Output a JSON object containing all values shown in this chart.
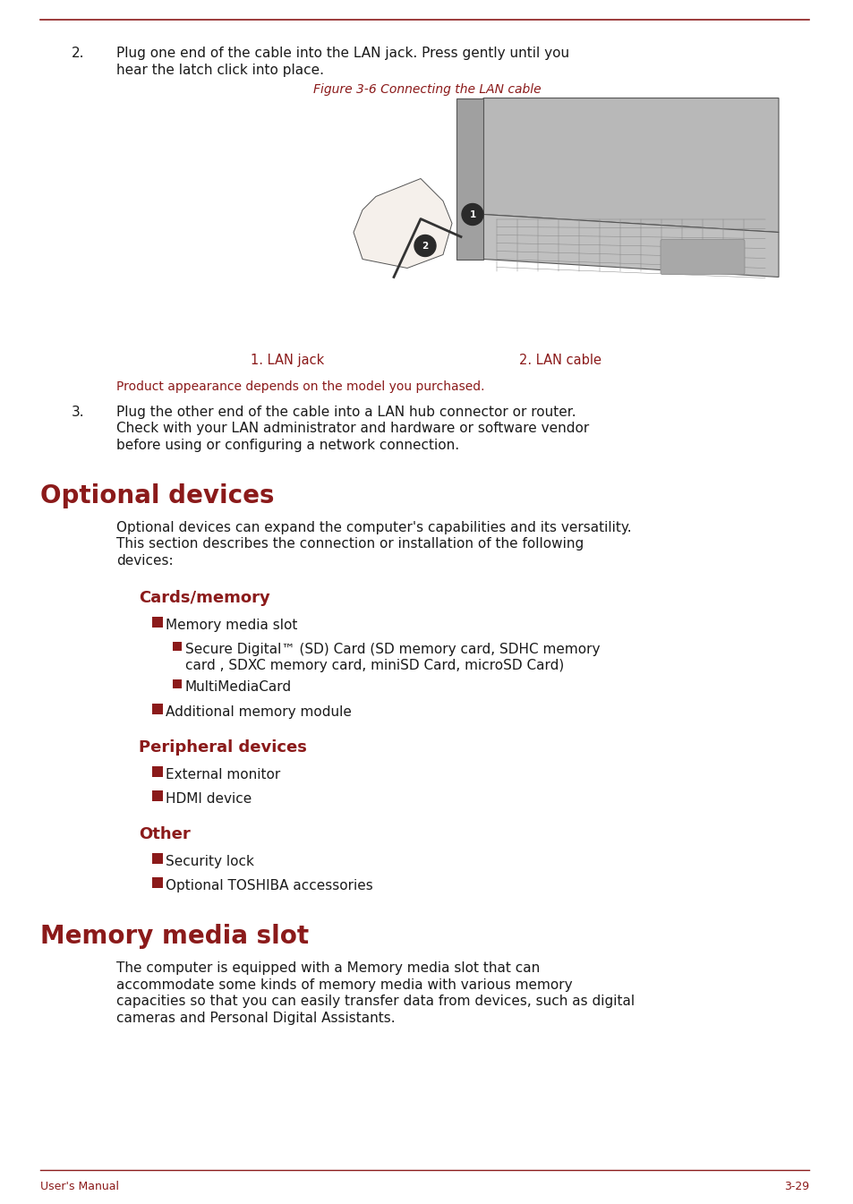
{
  "bg_color": "#ffffff",
  "dark_red": "#8B1A1A",
  "black": "#1a1a1a",
  "page_width": 9.54,
  "page_height": 13.45,
  "footer_left": "User's Manual",
  "footer_right": "3-29",
  "step2_number": "2.",
  "step2_text_line1": "Plug one end of the cable into the LAN jack. Press gently until you",
  "step2_text_line2": "hear the latch click into place.",
  "figure_caption": "Figure 3-6 Connecting the LAN cable",
  "label1": "1. LAN jack",
  "label2": "2. LAN cable",
  "product_note": "Product appearance depends on the model you purchased.",
  "step3_number": "3.",
  "step3_text_line1": "Plug the other end of the cable into a LAN hub connector or router.",
  "step3_text_line2": "Check with your LAN administrator and hardware or software vendor",
  "step3_text_line3": "before using or configuring a network connection.",
  "section1_title": "Optional devices",
  "section1_para_line1": "Optional devices can expand the computer's capabilities and its versatility.",
  "section1_para_line2": "This section describes the connection or installation of the following",
  "section1_para_line3": "devices:",
  "subsection1_title": "Cards/memory",
  "bullet1_l1": "Memory media slot",
  "bullet1_l1_sub1_line1": "Secure Digital™ (SD) Card (SD memory card, SDHC memory",
  "bullet1_l1_sub1_line2": "card , SDXC memory card, miniSD Card, microSD Card)",
  "bullet1_l1_sub2": "MultiMediaCard",
  "bullet1_l2": "Additional memory module",
  "subsection2_title": "Peripheral devices",
  "bullet2_l1": "External monitor",
  "bullet2_l2": "HDMI device",
  "subsection3_title": "Other",
  "bullet3_l1": "Security lock",
  "bullet3_l2": "Optional TOSHIBA accessories",
  "section2_title": "Memory media slot",
  "section2_para_line1": "The computer is equipped with a Memory media slot that can",
  "section2_para_line2": "accommodate some kinds of memory media with various memory",
  "section2_para_line3": "capacities so that you can easily transfer data from devices, such as digital",
  "section2_para_line4": "cameras and Personal Digital Assistants."
}
